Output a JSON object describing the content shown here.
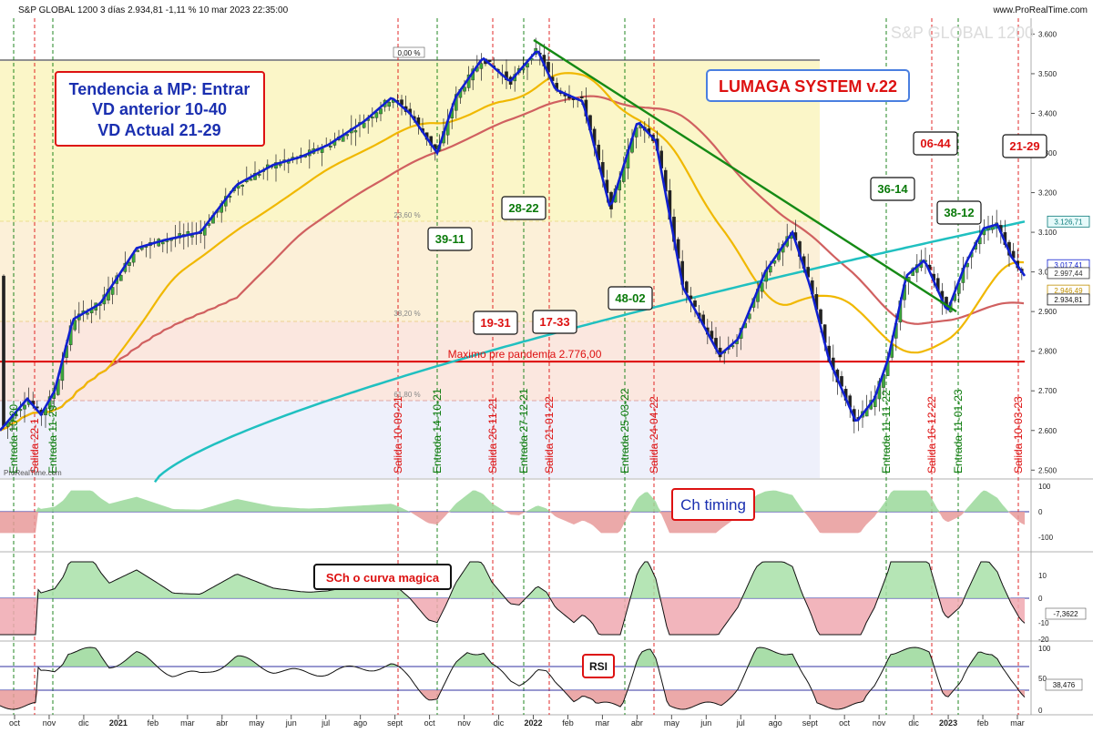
{
  "header": {
    "text": "S&P GLOBAL 1200 3 días 2.934,81 -1,11 % 10 mar 2023 22:35:00",
    "site": "www.ProRealTime.com",
    "watermark": "S&P GLOBAL 1200",
    "corner_logo": "ProRealTime.com"
  },
  "annotations": {
    "trend_box": [
      "Tendencia a MP: Entrar",
      "VD anterior 10-40",
      "VD Actual  21-29"
    ],
    "system_box": "LUMAGA SYSTEM v.22",
    "ch_timing": "Ch timing",
    "sch_label": "SCh o curva magica",
    "rsi_label": "RSI",
    "maximo_label": "Maximo pre pandemia  2.776,00",
    "fib_labels": [
      "0,00 %",
      "23,60 %",
      "38,20 %",
      "61,80 %"
    ]
  },
  "signals": [
    {
      "label": "Salida 10-09-21",
      "type": "salida"
    },
    {
      "label": "Entrada 14-10-21",
      "type": "entrada"
    },
    {
      "label": "Salida 26-11-21",
      "type": "salida"
    },
    {
      "label": "Entrada 27-12-21",
      "type": "entrada"
    },
    {
      "label": "Salida 21-01-22",
      "type": "salida"
    },
    {
      "label": "Entrada 25-03-22",
      "type": "entrada"
    },
    {
      "label": "Salida 24-04-22",
      "type": "salida"
    },
    {
      "label": "Entrada 11-11-22",
      "type": "entrada"
    },
    {
      "label": "Salida 16-12-22",
      "type": "salida"
    },
    {
      "label": "Entrada 11-01-23",
      "type": "entrada"
    },
    {
      "label": "Salida 10-03-23",
      "type": "salida"
    },
    {
      "label": "Entrada 10-20",
      "type": "entrada"
    },
    {
      "label": "Salida 22-1",
      "type": "salida"
    },
    {
      "label": "Entrada 11-29",
      "type": "entrada"
    }
  ],
  "ratio_boxes": [
    {
      "label": "39-11",
      "color": "#0a7a0a"
    },
    {
      "label": "28-22",
      "color": "#0a7a0a"
    },
    {
      "label": "19-31",
      "color": "#dd1111"
    },
    {
      "label": "17-33",
      "color": "#dd1111"
    },
    {
      "label": "48-02",
      "color": "#0a7a0a"
    },
    {
      "label": "36-14",
      "color": "#0a7a0a"
    },
    {
      "label": "06-44",
      "color": "#dd1111"
    },
    {
      "label": "38-12",
      "color": "#0a7a0a"
    },
    {
      "label": "21-29",
      "color": "#dd1111"
    }
  ],
  "price_labels": {
    "ma_cyan": "3.126,71",
    "ma_blue": "3.017,41",
    "ma_dark": "2.997,44",
    "ma_yellow": "2.946,49",
    "last": "2.934,81"
  },
  "y_axis_ticks": [
    "3.600",
    "3.500",
    "3.400",
    "3.300",
    "3.200",
    "3.100",
    "3.000",
    "2.900",
    "2.800",
    "2.700",
    "2.600",
    "2.500"
  ],
  "x_axis_ticks": [
    "oct",
    "nov",
    "dic",
    "2021",
    "feb",
    "mar",
    "abr",
    "may",
    "jun",
    "jul",
    "ago",
    "sept",
    "oct",
    "nov",
    "dic",
    "2022",
    "feb",
    "mar",
    "abr",
    "may",
    "jun",
    "jul",
    "ago",
    "sept",
    "oct",
    "nov",
    "dic",
    "2023",
    "feb",
    "mar"
  ],
  "osc1_ticks": [
    "100",
    "0",
    "-100"
  ],
  "osc2_ticks": [
    "10",
    "0",
    "-10",
    "-20"
  ],
  "osc2_value": "-7,3622",
  "osc3_ticks": [
    "100",
    "50",
    "0"
  ],
  "osc3_value": "38,476",
  "colors": {
    "entrada": "#0a7a0a",
    "salida": "#dd1111",
    "ma_cyan": "#20c0c0",
    "ma_red": "#d06060",
    "ma_yellow": "#f0b800",
    "ma_blue": "#1020d0",
    "trendline": "#158a15",
    "candle_up": "#3ca83c",
    "support": "#dd0000"
  },
  "chart_data": {
    "type": "line",
    "title": "S&P GLOBAL 1200 3 días",
    "ylim": [
      2480,
      3640
    ],
    "xlabel": "",
    "ylabel": "",
    "x": [
      "oct",
      "nov",
      "dic",
      "2021",
      "feb",
      "mar",
      "abr",
      "may",
      "jun",
      "jul",
      "ago",
      "sept",
      "oct",
      "nov",
      "dic",
      "2022",
      "feb",
      "mar",
      "abr",
      "may",
      "jun",
      "jul",
      "ago",
      "sept",
      "oct",
      "nov",
      "dic",
      "2023",
      "feb",
      "mar"
    ],
    "series": [
      {
        "values": [
          2600,
          2680,
          2880,
          2990,
          3080,
          3130,
          3170,
          3230,
          3270,
          3330,
          3390,
          3440,
          3310,
          3510,
          3460,
          3580,
          3300,
          3160,
          3400,
          3220,
          2950,
          2880,
          3050,
          2760,
          2620,
          2880,
          2970,
          2920,
          3120,
          2990
        ]
      }
    ],
    "support_level": 2776,
    "last_value": 2934.81,
    "change_pct": -1.11
  }
}
